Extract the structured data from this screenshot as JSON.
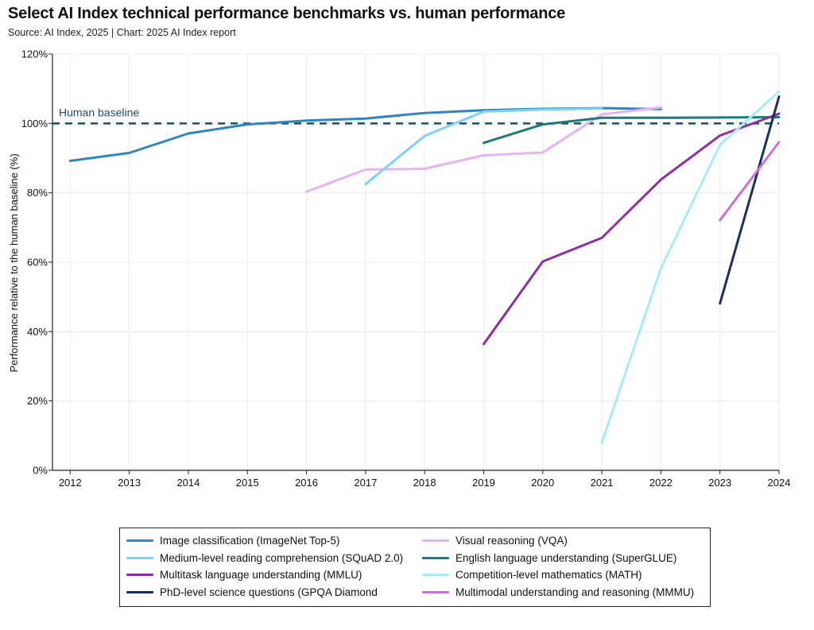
{
  "header": {
    "title": "Select AI Index technical performance benchmarks vs. human performance",
    "subtitle": "Source: AI Index, 2025 | Chart: 2025 AI Index report"
  },
  "chart_data": {
    "type": "line",
    "title": "Select AI Index technical performance benchmarks vs. human performance",
    "subtitle": "Source: AI Index, 2025 | Chart: 2025 AI Index report",
    "xlabel": "",
    "ylabel": "Performance relative to the human baseline (%)",
    "x_ticks": [
      2012,
      2013,
      2014,
      2015,
      2016,
      2017,
      2018,
      2019,
      2020,
      2021,
      2022,
      2023,
      2024
    ],
    "y_ticks": [
      0,
      20,
      40,
      60,
      80,
      100,
      120
    ],
    "y_tick_labels": [
      "0%",
      "20%",
      "40%",
      "60%",
      "80%",
      "100%",
      "120%"
    ],
    "xlim": [
      2011.7,
      2024
    ],
    "ylim": [
      0,
      120
    ],
    "grid": true,
    "legend_position": "bottom",
    "baseline": {
      "label": "Human baseline",
      "value": 100,
      "color": "#1f4f5f"
    },
    "series": [
      {
        "name": "Image classification (ImageNet Top-5)",
        "color": "#2e86c1",
        "x": [
          2012,
          2013,
          2014,
          2015,
          2016,
          2017,
          2018,
          2019,
          2020,
          2021,
          2022
        ],
        "y": [
          89.2,
          91.5,
          97.1,
          99.7,
          100.8,
          101.4,
          103.0,
          103.8,
          104.2,
          104.4,
          104.1
        ]
      },
      {
        "name": "Visual reasoning (VQA)",
        "color": "#e6b3f2",
        "x": [
          2016,
          2017,
          2018,
          2019,
          2020,
          2021,
          2022
        ],
        "y": [
          80.3,
          86.7,
          86.9,
          90.8,
          91.6,
          102.6,
          104.6
        ]
      },
      {
        "name": "Medium-level reading comprehension (SQuAD 2.0)",
        "color": "#7fd0f5",
        "x": [
          2017,
          2018,
          2019,
          2020,
          2021
        ],
        "y": [
          82.5,
          96.4,
          103.4,
          104.0,
          104.3
        ]
      },
      {
        "name": "English language understanding (SuperGLUE)",
        "color": "#1e7a7a",
        "x": [
          2019,
          2020,
          2021,
          2022,
          2023,
          2024
        ],
        "y": [
          94.4,
          99.7,
          101.6,
          101.6,
          101.7,
          101.8
        ]
      },
      {
        "name": "Multitask language understanding (MMLU)",
        "color": "#8e2fa0",
        "x": [
          2019,
          2020,
          2021,
          2022,
          2023,
          2024
        ],
        "y": [
          36.4,
          60.2,
          67.0,
          83.8,
          96.5,
          102.8
        ]
      },
      {
        "name": "Competition-level mathematics (MATH)",
        "color": "#a8ecf0",
        "x": [
          2021,
          2022,
          2023,
          2024
        ],
        "y": [
          7.9,
          58.2,
          93.8,
          109.2
        ]
      },
      {
        "name": "PhD-level science questions (GPQA Diamond",
        "color": "#1b2f5e",
        "x": [
          2023,
          2024
        ],
        "y": [
          48.1,
          107.7
        ]
      },
      {
        "name": "Multimodal understanding and reasoning (MMMU)",
        "color": "#c96fdc",
        "x": [
          2023,
          2024
        ],
        "y": [
          72.1,
          94.6
        ]
      }
    ]
  },
  "legend": {
    "items": [
      {
        "label": "Image classification (ImageNet Top-5)",
        "color": "#2e86c1"
      },
      {
        "label": "Visual reasoning (VQA)",
        "color": "#e6b3f2"
      },
      {
        "label": "Medium-level reading comprehension (SQuAD 2.0)",
        "color": "#7fd0f5"
      },
      {
        "label": "English language understanding (SuperGLUE)",
        "color": "#1e7a7a"
      },
      {
        "label": "Multitask language understanding (MMLU)",
        "color": "#8e2fa0"
      },
      {
        "label": "Competition-level mathematics (MATH)",
        "color": "#a8ecf0"
      },
      {
        "label": "PhD-level science questions (GPQA Diamond",
        "color": "#1b2f5e"
      },
      {
        "label": "Multimodal understanding and reasoning (MMMU)",
        "color": "#c96fdc"
      }
    ]
  }
}
